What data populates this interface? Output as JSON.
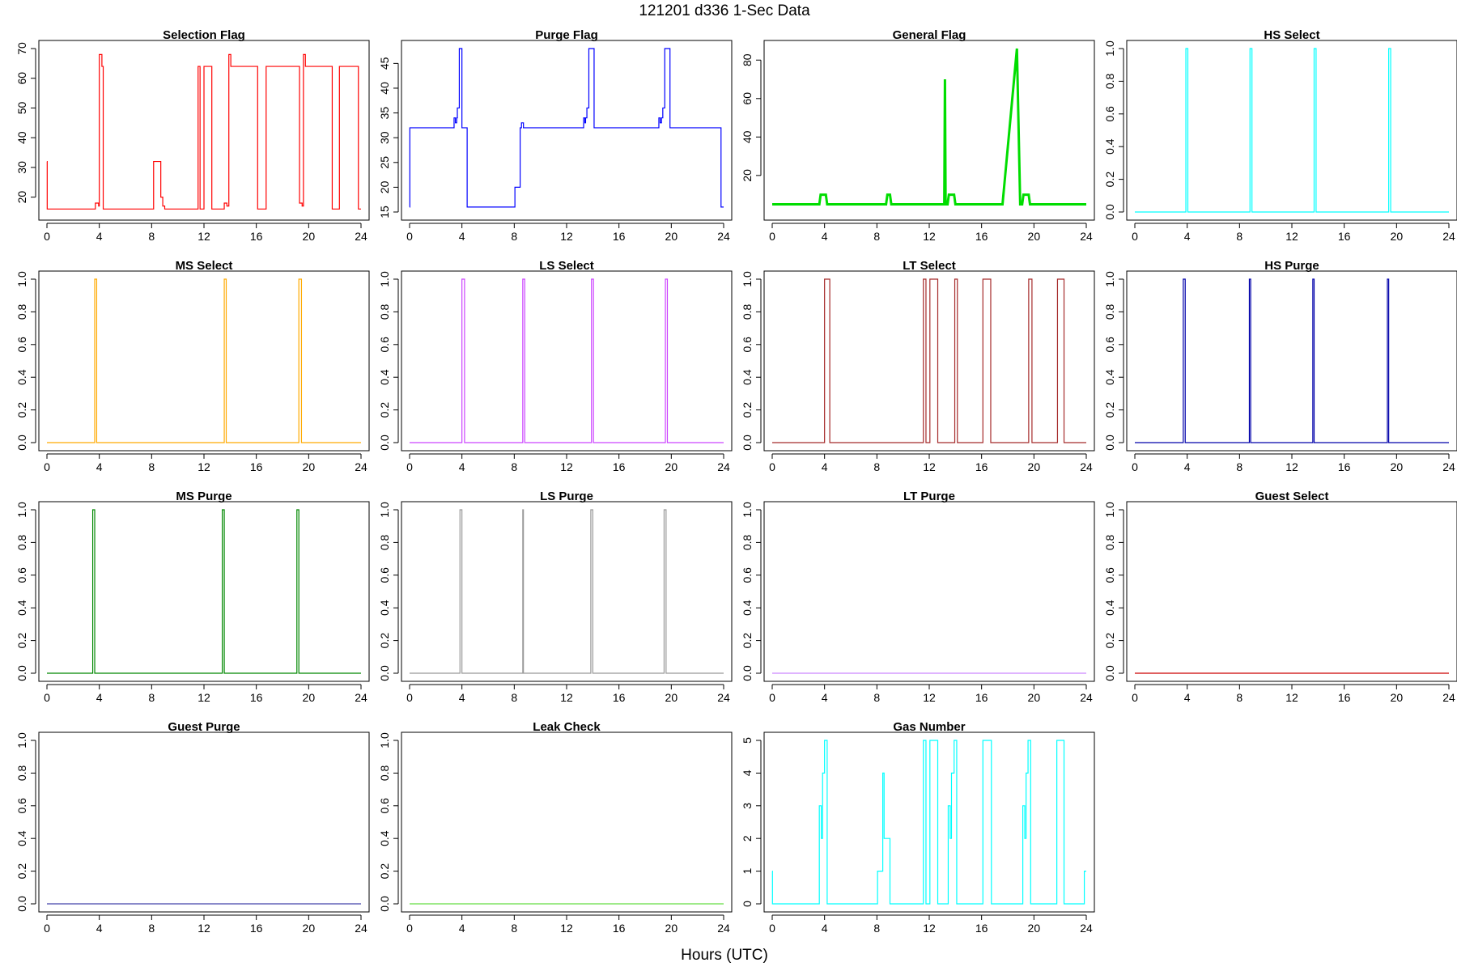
{
  "figure": {
    "title": "121201   d336   1-Sec Data",
    "xlabel": "Hours (UTC)"
  },
  "chart_data": [
    {
      "type": "line",
      "title": "Selection Flag",
      "color": "#ff0000",
      "xlim": [
        0,
        24
      ],
      "ylim": [
        15,
        70
      ],
      "xticks": [
        0,
        4,
        8,
        12,
        16,
        20,
        24
      ],
      "yticks": [
        20,
        30,
        40,
        50,
        60,
        70
      ],
      "yrot": true,
      "series": [
        {
          "x": [
            0,
            0.02,
            0.02,
            3.7,
            3.7,
            3.95,
            3.95,
            4.0,
            4.0,
            4.2,
            4.2,
            4.3,
            4.3,
            8.15,
            8.15,
            8.7,
            8.7,
            8.85,
            8.85,
            9.0,
            9.0,
            11.55,
            11.55,
            11.7,
            11.7,
            12.0,
            12.0,
            12.6,
            12.6,
            13.55,
            13.55,
            13.75,
            13.75,
            13.9,
            13.9,
            14.05,
            14.05,
            16.1,
            16.1,
            16.75,
            16.75,
            19.3,
            19.3,
            19.5,
            19.5,
            19.6,
            19.6,
            19.75,
            19.75,
            21.8,
            21.8,
            22.35,
            22.35,
            23.8,
            23.8,
            24.0
          ],
          "y": [
            32,
            32,
            16,
            16,
            18,
            18,
            17,
            17,
            68,
            68,
            64,
            64,
            16,
            16,
            32,
            32,
            20,
            20,
            17,
            17,
            16,
            16,
            64,
            64,
            16,
            16,
            64,
            64,
            16,
            16,
            18,
            18,
            17,
            17,
            68,
            68,
            64,
            64,
            16,
            16,
            64,
            64,
            18,
            18,
            17,
            17,
            68,
            68,
            64,
            64,
            16,
            16,
            64,
            64,
            16,
            16
          ]
        }
      ]
    },
    {
      "type": "line",
      "title": "Purge Flag",
      "color": "#0000ff",
      "xlim": [
        0,
        24
      ],
      "ylim": [
        15,
        48
      ],
      "xticks": [
        0,
        4,
        8,
        12,
        16,
        20,
        24
      ],
      "yticks": [
        15,
        20,
        25,
        30,
        35,
        40,
        45
      ],
      "yrot": true,
      "series": [
        {
          "x": [
            0,
            0.02,
            0.02,
            3.4,
            3.4,
            3.5,
            3.5,
            3.6,
            3.6,
            3.65,
            3.65,
            3.8,
            3.8,
            4.0,
            4.0,
            4.4,
            4.4,
            8.05,
            8.05,
            8.45,
            8.45,
            8.55,
            8.55,
            8.7,
            8.7,
            8.8,
            8.8,
            13.3,
            13.3,
            13.4,
            13.4,
            13.45,
            13.45,
            13.55,
            13.55,
            13.7,
            13.7,
            14.1,
            14.1,
            19.05,
            19.05,
            19.15,
            19.15,
            19.25,
            19.25,
            19.35,
            19.35,
            19.5,
            19.5,
            19.9,
            19.9,
            23.8,
            23.8,
            24.0
          ],
          "y": [
            16,
            16,
            32,
            32,
            34,
            34,
            33,
            33,
            34,
            34,
            36,
            36,
            48,
            48,
            32,
            32,
            16,
            16,
            20,
            20,
            32,
            32,
            33,
            33,
            32,
            32,
            32,
            32,
            34,
            34,
            33,
            33,
            34,
            34,
            36,
            36,
            48,
            48,
            32,
            32,
            34,
            34,
            33,
            33,
            34,
            34,
            36,
            36,
            48,
            48,
            32,
            32,
            16,
            16
          ]
        }
      ]
    },
    {
      "type": "line",
      "title": "General Flag",
      "color": "#00dd00",
      "xlim": [
        0,
        24
      ],
      "ylim": [
        1,
        86
      ],
      "xticks": [
        0,
        4,
        8,
        12,
        16,
        20,
        24
      ],
      "yticks": [
        20,
        40,
        60,
        80
      ],
      "yrot": true,
      "linewidth": 3,
      "series": [
        {
          "x": [
            0,
            3.6,
            3.7,
            4.1,
            4.2,
            8.7,
            8.8,
            9.0,
            9.1,
            13.15,
            13.2,
            13.25,
            13.4,
            13.5,
            13.9,
            14.0,
            17.6,
            18.7,
            18.95,
            19.1,
            19.2,
            19.6,
            19.7,
            24.0
          ],
          "y": [
            5,
            5,
            10,
            10,
            5,
            5,
            10,
            10,
            5,
            5,
            70,
            5,
            5,
            10,
            10,
            5,
            5,
            86,
            5,
            5,
            10,
            10,
            5,
            5
          ]
        }
      ]
    },
    {
      "type": "line",
      "title": "HS Select",
      "color": "#00ffff",
      "xlim": [
        0,
        24
      ],
      "ylim": [
        0,
        1
      ],
      "xticks": [
        0,
        4,
        8,
        12,
        16,
        20,
        24
      ],
      "yticks": [
        0,
        0.2,
        0.4,
        0.6,
        0.8,
        1.0
      ],
      "yrot": true,
      "series": [
        {
          "x": [
            0,
            3.9,
            3.9,
            4.05,
            4.05,
            8.8,
            8.8,
            8.95,
            8.95,
            13.7,
            13.7,
            13.85,
            13.85,
            19.4,
            19.4,
            19.55,
            19.55,
            24.0
          ],
          "y": [
            0,
            0,
            1,
            1,
            0,
            0,
            1,
            1,
            0,
            0,
            1,
            1,
            0,
            0,
            1,
            1,
            0,
            0
          ]
        }
      ]
    },
    {
      "type": "line",
      "title": "MS Select",
      "color": "#ffaa00",
      "xlim": [
        0,
        24
      ],
      "ylim": [
        0,
        1
      ],
      "xticks": [
        0,
        4,
        8,
        12,
        16,
        20,
        24
      ],
      "yticks": [
        0,
        0.2,
        0.4,
        0.6,
        0.8,
        1.0
      ],
      "yrot": true,
      "series": [
        {
          "x": [
            0,
            3.65,
            3.65,
            3.8,
            3.8,
            13.55,
            13.55,
            13.7,
            13.7,
            19.25,
            19.25,
            19.45,
            19.45,
            24.0
          ],
          "y": [
            0,
            0,
            1,
            1,
            0,
            0,
            1,
            1,
            0,
            0,
            1,
            1,
            0,
            0
          ]
        }
      ]
    },
    {
      "type": "line",
      "title": "LS Select",
      "color": "#cc44ff",
      "xlim": [
        0,
        24
      ],
      "ylim": [
        0,
        1
      ],
      "xticks": [
        0,
        4,
        8,
        12,
        16,
        20,
        24
      ],
      "yticks": [
        0,
        0.2,
        0.4,
        0.6,
        0.8,
        1.0
      ],
      "yrot": true,
      "series": [
        {
          "x": [
            0,
            4.0,
            4.0,
            4.2,
            4.2,
            8.65,
            8.65,
            8.8,
            8.8,
            13.9,
            13.9,
            14.05,
            14.05,
            19.55,
            19.55,
            19.7,
            19.7,
            24.0
          ],
          "y": [
            0,
            0,
            1,
            1,
            0,
            0,
            1,
            1,
            0,
            0,
            1,
            1,
            0,
            0,
            1,
            1,
            0,
            0
          ]
        }
      ]
    },
    {
      "type": "line",
      "title": "LT Select",
      "color": "#a52a2a",
      "xlim": [
        0,
        24
      ],
      "ylim": [
        0,
        1
      ],
      "xticks": [
        0,
        4,
        8,
        12,
        16,
        20,
        24
      ],
      "yticks": [
        0,
        0.2,
        0.4,
        0.6,
        0.8,
        1.0
      ],
      "yrot": true,
      "series": [
        {
          "x": [
            0,
            4.0,
            4.0,
            4.4,
            4.4,
            11.55,
            11.55,
            11.75,
            11.75,
            12.05,
            12.05,
            12.65,
            12.65,
            13.95,
            13.95,
            14.15,
            14.15,
            16.1,
            16.1,
            16.7,
            16.7,
            19.6,
            19.6,
            19.85,
            19.85,
            21.8,
            21.8,
            22.3,
            22.3,
            24.0
          ],
          "y": [
            0,
            0,
            1,
            1,
            0,
            0,
            1,
            1,
            0,
            0,
            1,
            1,
            0,
            0,
            1,
            1,
            0,
            0,
            1,
            1,
            0,
            0,
            1,
            1,
            0,
            0,
            1,
            1,
            0,
            0
          ]
        }
      ]
    },
    {
      "type": "line",
      "title": "HS Purge",
      "color": "#0000aa",
      "xlim": [
        0,
        24
      ],
      "ylim": [
        0,
        1
      ],
      "xticks": [
        0,
        4,
        8,
        12,
        16,
        20,
        24
      ],
      "yticks": [
        0,
        0.2,
        0.4,
        0.6,
        0.8,
        1.0
      ],
      "yrot": true,
      "series": [
        {
          "x": [
            0,
            3.7,
            3.7,
            3.85,
            3.85,
            8.75,
            8.75,
            8.85,
            8.85,
            13.6,
            13.6,
            13.7,
            13.7,
            19.3,
            19.3,
            19.4,
            19.4,
            24.0
          ],
          "y": [
            0,
            0,
            1,
            1,
            0,
            0,
            1,
            1,
            0,
            0,
            1,
            1,
            0,
            0,
            1,
            1,
            0,
            0
          ]
        }
      ]
    },
    {
      "type": "line",
      "title": "MS Purge",
      "color": "#008800",
      "xlim": [
        0,
        24
      ],
      "ylim": [
        0,
        1
      ],
      "xticks": [
        0,
        4,
        8,
        12,
        16,
        20,
        24
      ],
      "yticks": [
        0,
        0.2,
        0.4,
        0.6,
        0.8,
        1.0
      ],
      "yrot": true,
      "series": [
        {
          "x": [
            0,
            3.5,
            3.5,
            3.65,
            3.65,
            13.4,
            13.4,
            13.55,
            13.55,
            19.1,
            19.1,
            19.25,
            19.25,
            24.0
          ],
          "y": [
            0,
            0,
            1,
            1,
            0,
            0,
            1,
            1,
            0,
            0,
            1,
            1,
            0,
            0
          ]
        }
      ]
    },
    {
      "type": "line",
      "title": "LS Purge",
      "color": "#999999",
      "xlim": [
        0,
        24
      ],
      "ylim": [
        0,
        1
      ],
      "xticks": [
        0,
        4,
        8,
        12,
        16,
        20,
        24
      ],
      "yticks": [
        0,
        0.2,
        0.4,
        0.6,
        0.8,
        1.0
      ],
      "yrot": true,
      "series": [
        {
          "x": [
            0,
            3.85,
            3.85,
            4.0,
            4.0,
            8.65,
            8.65,
            8.7,
            8.7,
            13.85,
            13.85,
            14.0,
            14.0,
            19.45,
            19.45,
            19.6,
            19.6,
            24.0
          ],
          "y": [
            0,
            0,
            1,
            1,
            0,
            0,
            1,
            1,
            0,
            0,
            1,
            1,
            0,
            0,
            1,
            1,
            0,
            0
          ]
        }
      ]
    },
    {
      "type": "line",
      "title": "LT Purge",
      "color": "#cc88ff",
      "xlim": [
        0,
        24
      ],
      "ylim": [
        0,
        1
      ],
      "xticks": [
        0,
        4,
        8,
        12,
        16,
        20,
        24
      ],
      "yticks": [
        0,
        0.2,
        0.4,
        0.6,
        0.8,
        1.0
      ],
      "yrot": true,
      "series": [
        {
          "x": [
            0,
            24
          ],
          "y": [
            0,
            0
          ]
        }
      ]
    },
    {
      "type": "line",
      "title": "Guest Select",
      "color": "#cc0000",
      "xlim": [
        0,
        24
      ],
      "ylim": [
        0,
        1
      ],
      "xticks": [
        0,
        4,
        8,
        12,
        16,
        20,
        24
      ],
      "yticks": [
        0,
        0.2,
        0.4,
        0.6,
        0.8,
        1.0
      ],
      "yrot": true,
      "series": [
        {
          "x": [
            0,
            24
          ],
          "y": [
            0,
            0
          ]
        }
      ]
    },
    {
      "type": "line",
      "title": "Guest Purge",
      "color": "#4444aa",
      "xlim": [
        0,
        24
      ],
      "ylim": [
        0,
        1
      ],
      "xticks": [
        0,
        4,
        8,
        12,
        16,
        20,
        24
      ],
      "yticks": [
        0,
        0.2,
        0.4,
        0.6,
        0.8,
        1.0
      ],
      "yrot": true,
      "series": [
        {
          "x": [
            0,
            24
          ],
          "y": [
            0,
            0
          ]
        }
      ]
    },
    {
      "type": "line",
      "title": "Leak Check",
      "color": "#66dd44",
      "xlim": [
        0,
        24
      ],
      "ylim": [
        0,
        1
      ],
      "xticks": [
        0,
        4,
        8,
        12,
        16,
        20,
        24
      ],
      "yticks": [
        0,
        0.2,
        0.4,
        0.6,
        0.8,
        1.0
      ],
      "yrot": true,
      "series": [
        {
          "x": [
            0,
            24
          ],
          "y": [
            0,
            0
          ]
        }
      ]
    },
    {
      "type": "line",
      "title": "Gas Number",
      "color": "#00ffff",
      "xlim": [
        0,
        24
      ],
      "ylim": [
        0,
        5
      ],
      "xticks": [
        0,
        4,
        8,
        12,
        16,
        20,
        24
      ],
      "yticks": [
        0,
        1,
        2,
        3,
        4,
        5
      ],
      "yrot": true,
      "series": [
        {
          "x": [
            0,
            0.02,
            0.02,
            3.6,
            3.6,
            3.75,
            3.75,
            3.85,
            3.85,
            4.0,
            4.0,
            4.2,
            4.2,
            8.05,
            8.05,
            8.45,
            8.45,
            8.55,
            8.55,
            8.65,
            8.65,
            9.0,
            9.0,
            11.55,
            11.55,
            11.75,
            11.75,
            12.05,
            12.05,
            12.65,
            12.65,
            13.45,
            13.45,
            13.6,
            13.6,
            13.7,
            13.7,
            13.9,
            13.9,
            14.1,
            14.1,
            16.1,
            16.1,
            16.75,
            16.75,
            19.15,
            19.15,
            19.3,
            19.3,
            19.4,
            19.4,
            19.55,
            19.55,
            19.75,
            19.75,
            21.75,
            21.75,
            22.3,
            22.3,
            23.85,
            23.85,
            24.0
          ],
          "y": [
            1,
            1,
            0,
            0,
            3,
            3,
            2,
            2,
            4,
            4,
            5,
            5,
            0,
            0,
            1,
            1,
            4,
            4,
            2,
            2,
            2,
            2,
            0,
            0,
            5,
            5,
            0,
            0,
            5,
            5,
            0,
            0,
            3,
            3,
            2,
            2,
            4,
            4,
            5,
            5,
            0,
            0,
            5,
            5,
            0,
            0,
            3,
            3,
            2,
            2,
            4,
            4,
            5,
            5,
            0,
            0,
            5,
            5,
            0,
            0,
            1,
            1
          ]
        }
      ]
    }
  ]
}
